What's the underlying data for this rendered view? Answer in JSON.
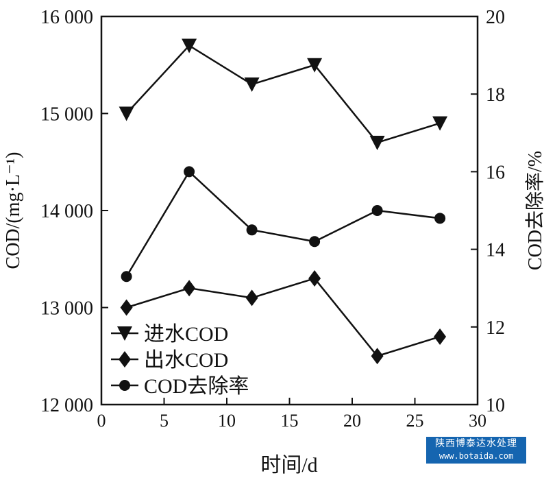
{
  "chart_data": {
    "type": "line",
    "xlabel": "时间/d",
    "ylabel": "COD/(mg·L⁻¹)",
    "y2label": "COD去除率/%",
    "xlim": [
      0,
      30
    ],
    "ylim": [
      12000,
      16000
    ],
    "y2lim": [
      10,
      20
    ],
    "xticks": [
      0,
      5,
      10,
      15,
      20,
      25,
      30
    ],
    "yticks": [
      12000,
      13000,
      14000,
      15000,
      16000
    ],
    "ytick_labels": [
      "12 000",
      "13 000",
      "14 000",
      "15 000",
      "16 000"
    ],
    "y2ticks": [
      10,
      12,
      14,
      16,
      18,
      20
    ],
    "grid": false,
    "legend_position": "bottom-left",
    "x": [
      2,
      7,
      12,
      17,
      22,
      27
    ],
    "series": [
      {
        "name": "进水COD",
        "axis": "left",
        "marker": "triangle-down",
        "values": [
          15000,
          15700,
          15300,
          15500,
          14700,
          14900
        ]
      },
      {
        "name": "出水COD",
        "axis": "left",
        "marker": "diamond",
        "values": [
          13000,
          13200,
          13100,
          13300,
          12500,
          12700
        ]
      },
      {
        "name": "COD去除率",
        "axis": "right",
        "marker": "circle",
        "values": [
          13.3,
          16.0,
          14.5,
          14.2,
          15.0,
          14.8
        ]
      }
    ]
  },
  "watermark": {
    "line1": "陕西博泰达水处理",
    "line2": "www.botaida.com",
    "color": "#1565b0"
  }
}
